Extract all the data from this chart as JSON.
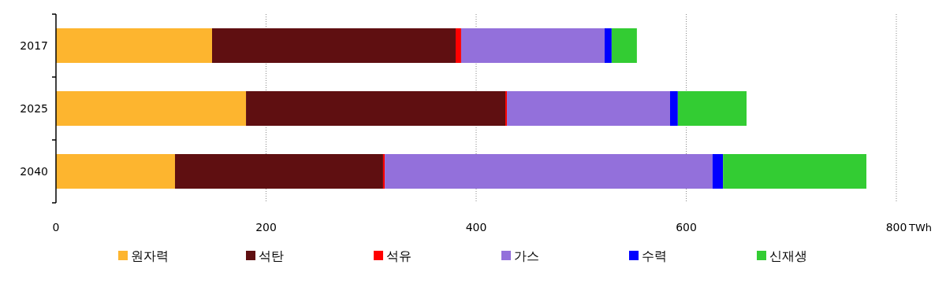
{
  "chart_data": {
    "type": "bar",
    "orientation": "horizontal",
    "stacked": true,
    "categories": [
      "2017",
      "2025",
      "2040"
    ],
    "series": [
      {
        "name": "원자력",
        "color": "#fdb52f",
        "values": [
          148.6,
          180.9,
          113.3
        ]
      },
      {
        "name": "석탄",
        "color": "#5f0f11",
        "values": [
          231.9,
          246.9,
          198.1
        ]
      },
      {
        "name": "석유",
        "color": "#ff0000",
        "values": [
          5.2,
          1.5,
          1.6
        ]
      },
      {
        "name": "가스",
        "color": "#9370db",
        "values": [
          136.6,
          155.3,
          312
        ]
      },
      {
        "name": "수력",
        "color": "#0000ff",
        "values": [
          6.7,
          7.4,
          10
        ]
      },
      {
        "name": "신재생",
        "color": "#33cc33",
        "values": [
          24,
          65.4,
          136.5
        ]
      }
    ],
    "xlim": [
      0,
      800
    ],
    "xticks": [
      0,
      200,
      400,
      600,
      800
    ],
    "xlabel": "TWh",
    "grid": "x",
    "legend": "bottom"
  }
}
